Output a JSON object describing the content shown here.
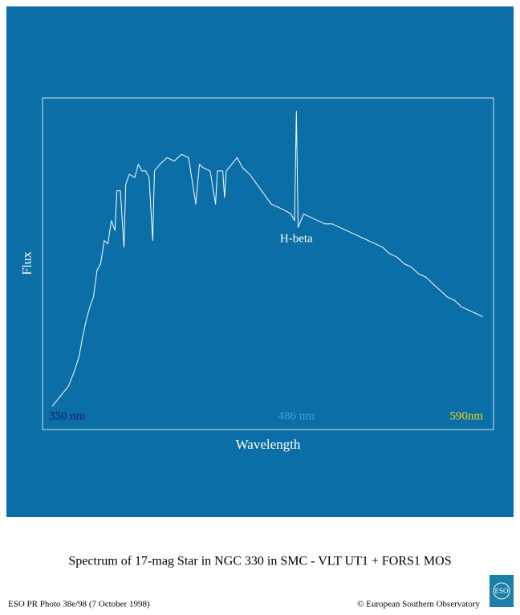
{
  "chart_data": {
    "type": "line",
    "title": "Spectrum of 17-mag Star in NGC 330 in SMC - VLT UT1 + FORS1 MOS",
    "xlabel": "Wavelength",
    "ylabel": "Flux",
    "annotation": {
      "text": "H-beta",
      "x": 486
    },
    "xlim": [
      350,
      590
    ],
    "ylim": [
      0,
      100
    ],
    "xticks": [
      {
        "value": 350,
        "label": "350 nm"
      },
      {
        "value": 486,
        "label": "486 nm"
      },
      {
        "value": 590,
        "label": "590nm"
      }
    ],
    "xtick_colors": [
      "#1a1a66",
      "#3fa3dd",
      "#e6d21e"
    ],
    "background": "#0b6ea6",
    "series": [
      {
        "name": "Flux",
        "color": "#ffffff",
        "x": [
          350,
          353,
          356,
          359,
          362,
          365,
          367,
          369,
          371,
          373,
          375,
          377,
          379,
          381,
          383,
          385,
          386,
          388,
          390,
          391,
          393,
          396,
          398,
          400,
          402,
          404,
          406,
          407,
          410,
          414,
          418,
          422,
          426,
          428,
          430,
          432,
          434,
          438,
          441,
          442,
          445,
          446,
          447,
          450,
          453,
          456,
          460,
          464,
          468,
          472,
          476,
          480,
          483,
          485,
          486,
          487,
          490,
          494,
          498,
          502,
          506,
          510,
          514,
          518,
          522,
          526,
          530,
          534,
          538,
          542,
          546,
          550,
          554,
          558,
          562,
          566,
          570,
          574,
          578,
          582,
          586,
          590
        ],
        "values": [
          7,
          9,
          11,
          13,
          17,
          22,
          28,
          33,
          37,
          40,
          48,
          50,
          57,
          56,
          63,
          60,
          72,
          72,
          55,
          74,
          77,
          76,
          80,
          78,
          78,
          76,
          57,
          78,
          80,
          82,
          81,
          83,
          82,
          75,
          68,
          80,
          79,
          78,
          68,
          78,
          78,
          70,
          78,
          80,
          82,
          79,
          77,
          74,
          71,
          68,
          67,
          66,
          65,
          63,
          96,
          61,
          65,
          64,
          63,
          62,
          62,
          61,
          60,
          59,
          58,
          57,
          56,
          55,
          53,
          52,
          50,
          49,
          47,
          46,
          44,
          42,
          40,
          39,
          37,
          36,
          35,
          34
        ]
      }
    ]
  },
  "footer": {
    "credit": "ESO PR Photo 38e/98 (7 October 1998)",
    "copyright": "© European Southern Observatory",
    "logo": "ESO"
  }
}
